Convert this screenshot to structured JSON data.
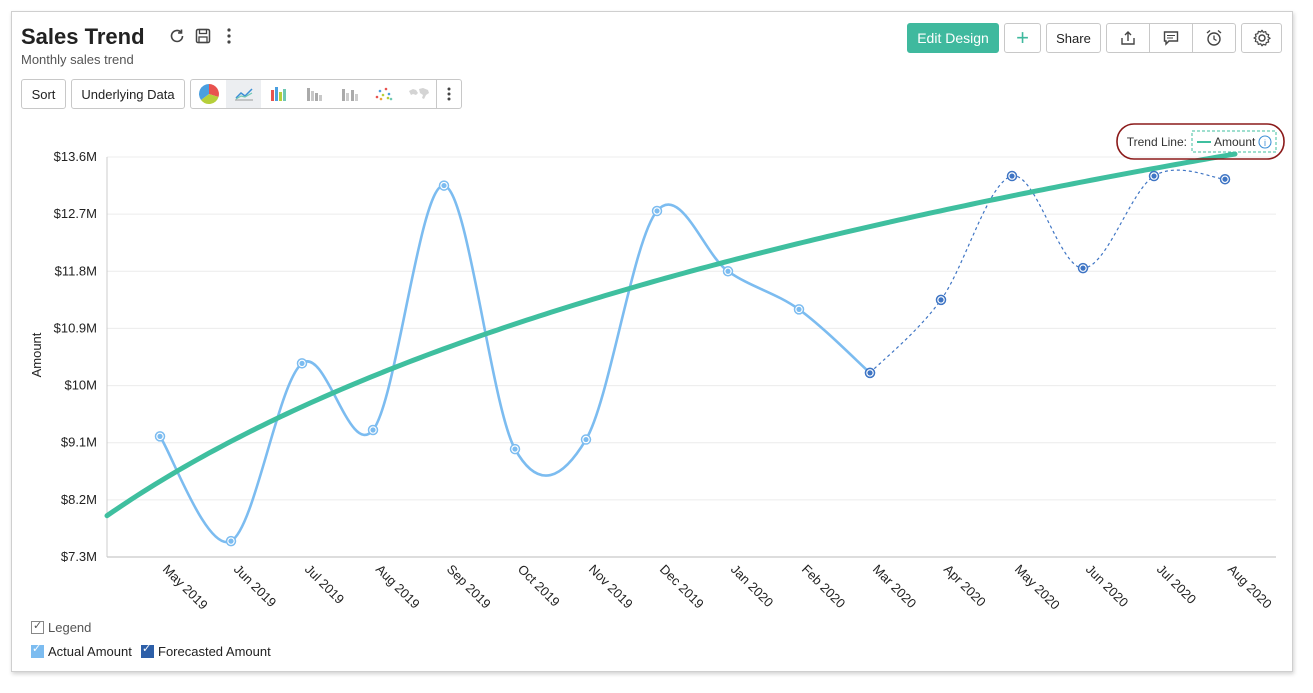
{
  "header": {
    "title": "Sales Trend",
    "subtitle": "Monthly sales trend"
  },
  "toolbar": {
    "edit_design_label": "Edit Design",
    "add_label": "+",
    "share_label": "Share",
    "sort_label": "Sort",
    "underlying_data_label": "Underlying Data"
  },
  "trend_label": {
    "prefix": "Trend Line:",
    "series": "Amount"
  },
  "legend": {
    "title": "Legend",
    "items": [
      "Actual Amount",
      "Forecasted Amount"
    ]
  },
  "colors": {
    "actual": "#7cbcf0",
    "forecast": "#3f75c4",
    "trend": "#3fbf9f",
    "accent": "#3fb99e",
    "highlight_ring": "#8b1a1a"
  },
  "icons": [
    "refresh-icon",
    "save-icon",
    "more-vertical-icon",
    "export-icon",
    "comment-icon",
    "alarm-icon",
    "gear-icon",
    "pie-chart-icon",
    "line-chart-icon",
    "bar-chart-icon",
    "stacked-bar-icon",
    "column-chart-icon",
    "scatter-icon",
    "map-icon"
  ],
  "chart_data": {
    "type": "line",
    "ylabel": "Amount",
    "y_ticks": [
      "$7.3M",
      "$8.2M",
      "$9.1M",
      "$10M",
      "$10.9M",
      "$11.8M",
      "$12.7M",
      "$13.6M"
    ],
    "ylim": [
      7.3,
      13.6
    ],
    "categories": [
      "May 2019",
      "Jun 2019",
      "Jul 2019",
      "Aug 2019",
      "Sep 2019",
      "Oct 2019",
      "Nov 2019",
      "Dec 2019",
      "Jan 2020",
      "Feb 2020",
      "Mar 2020",
      "Apr 2020",
      "May 2020",
      "Jun 2020",
      "Jul 2020",
      "Aug 2020"
    ],
    "series": [
      {
        "name": "Actual Amount",
        "values": [
          9.2,
          7.55,
          10.35,
          9.3,
          13.15,
          9.0,
          9.15,
          12.75,
          11.8,
          11.2,
          10.2,
          null,
          null,
          null,
          null,
          null
        ]
      },
      {
        "name": "Forecasted Amount",
        "values": [
          null,
          null,
          null,
          null,
          null,
          null,
          null,
          null,
          null,
          null,
          10.2,
          11.35,
          13.3,
          11.85,
          13.3,
          13.25
        ]
      }
    ],
    "trend_line": {
      "name": "Amount",
      "kind": "logarithmic",
      "start": 7.95,
      "end": 13.65
    },
    "grid": true,
    "legend_position": "bottom-left"
  }
}
